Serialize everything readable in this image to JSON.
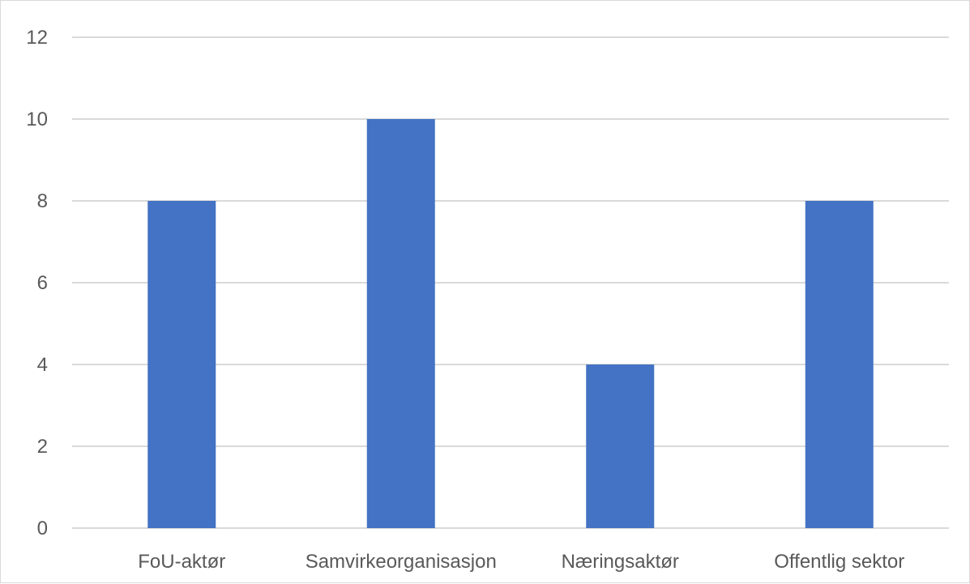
{
  "chart_data": {
    "type": "bar",
    "title": "",
    "xlabel": "",
    "ylabel": "",
    "categories": [
      "FoU-aktør",
      "Samvirkeorganisasjon",
      "Næringsaktør",
      "Offentlig sektor"
    ],
    "values": [
      8,
      10,
      4,
      8
    ],
    "ylim": [
      0,
      12
    ],
    "yticks": [
      0,
      2,
      4,
      6,
      8,
      10,
      12
    ],
    "grid": true,
    "legend": "none",
    "colors": {
      "bar": "#4472C4",
      "grid": "#d9d9d9",
      "text": "#595959"
    }
  }
}
